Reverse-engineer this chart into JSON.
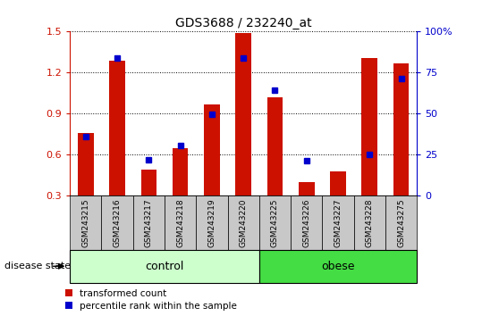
{
  "title": "GDS3688 / 232240_at",
  "samples": [
    "GSM243215",
    "GSM243216",
    "GSM243217",
    "GSM243218",
    "GSM243219",
    "GSM243220",
    "GSM243225",
    "GSM243226",
    "GSM243227",
    "GSM243228",
    "GSM243275"
  ],
  "red_values": [
    0.76,
    1.29,
    0.49,
    0.65,
    0.97,
    1.49,
    1.02,
    0.4,
    0.48,
    1.31,
    1.27
  ],
  "blue_values": [
    0.735,
    1.31,
    0.565,
    0.67,
    0.895,
    1.31,
    1.07,
    0.555,
    null,
    0.605,
    1.155
  ],
  "control_count": 6,
  "ylim": [
    0.3,
    1.5
  ],
  "yticks": [
    0.3,
    0.6,
    0.9,
    1.2,
    1.5
  ],
  "right_yticks": [
    0,
    25,
    50,
    75,
    100
  ],
  "right_ylim": [
    0,
    100
  ],
  "bar_color": "#cc1100",
  "dot_color": "#0000cc",
  "left_tick_color": "#cc1100",
  "right_tick_color": "#0000cc",
  "tick_label_bg": "#c8c8c8",
  "control_color": "#ccffcc",
  "obese_color": "#44dd44",
  "legend_red": "transformed count",
  "legend_blue": "percentile rank within the sample",
  "disease_state_label": "disease state",
  "group_control_label": "control",
  "group_obese_label": "obese"
}
